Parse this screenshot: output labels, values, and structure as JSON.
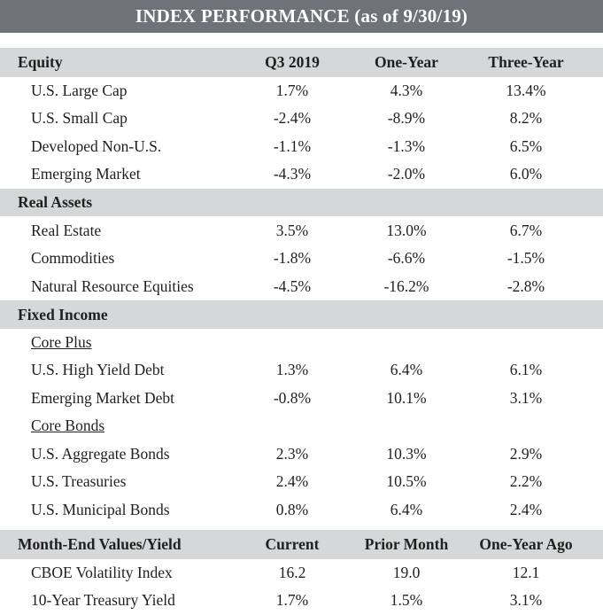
{
  "title": "INDEX PERFORMANCE (as of 9/30/19)",
  "sections": [
    {
      "header": {
        "label": "Equity",
        "cols": [
          "Q3 2019",
          "One-Year",
          "Three-Year"
        ]
      },
      "rows": [
        {
          "label": "U.S. Large Cap",
          "v": [
            "1.7%",
            "4.3%",
            "13.4%"
          ]
        },
        {
          "label": "U.S. Small Cap",
          "v": [
            "-2.4%",
            "-8.9%",
            "8.2%"
          ]
        },
        {
          "label": "Developed Non-U.S.",
          "v": [
            "-1.1%",
            "-1.3%",
            "6.5%"
          ]
        },
        {
          "label": "Emerging Market",
          "v": [
            "-4.3%",
            "-2.0%",
            "6.0%"
          ]
        }
      ]
    },
    {
      "header": {
        "label": "Real Assets"
      },
      "rows": [
        {
          "label": "Real Estate",
          "v": [
            "3.5%",
            "13.0%",
            "6.7%"
          ]
        },
        {
          "label": "Commodities",
          "v": [
            "-1.8%",
            "-6.6%",
            "-1.5%"
          ]
        },
        {
          "label": "Natural Resource Equities",
          "v": [
            "-4.5%",
            "-16.2%",
            "-2.8%"
          ]
        }
      ]
    },
    {
      "header": {
        "label": "Fixed Income"
      },
      "subheads": [
        "Core Plus",
        "Core Bonds"
      ],
      "rows": [
        {
          "label": "U.S. High Yield Debt",
          "v": [
            "1.3%",
            "6.4%",
            "6.1%"
          ]
        },
        {
          "label": "Emerging Market Debt",
          "v": [
            "-0.8%",
            "10.1%",
            "3.1%"
          ]
        },
        {
          "label": "U.S. Aggregate Bonds",
          "v": [
            "2.3%",
            "10.3%",
            "2.9%"
          ]
        },
        {
          "label": "U.S. Treasuries",
          "v": [
            "2.4%",
            "10.5%",
            "2.2%"
          ]
        },
        {
          "label": "U.S. Municipal Bonds",
          "v": [
            "0.8%",
            "6.4%",
            "2.4%"
          ]
        }
      ]
    },
    {
      "header": {
        "label": "Month-End Values/Yield",
        "cols": [
          "Current",
          "Prior Month",
          "One-Year Ago"
        ]
      },
      "rows": [
        {
          "label": "CBOE Volatility Index",
          "v": [
            "16.2",
            "19.0",
            "12.1"
          ]
        },
        {
          "label": "10-Year Treasury Yield",
          "v": [
            "1.7%",
            "1.5%",
            "3.1%"
          ]
        }
      ]
    }
  ]
}
